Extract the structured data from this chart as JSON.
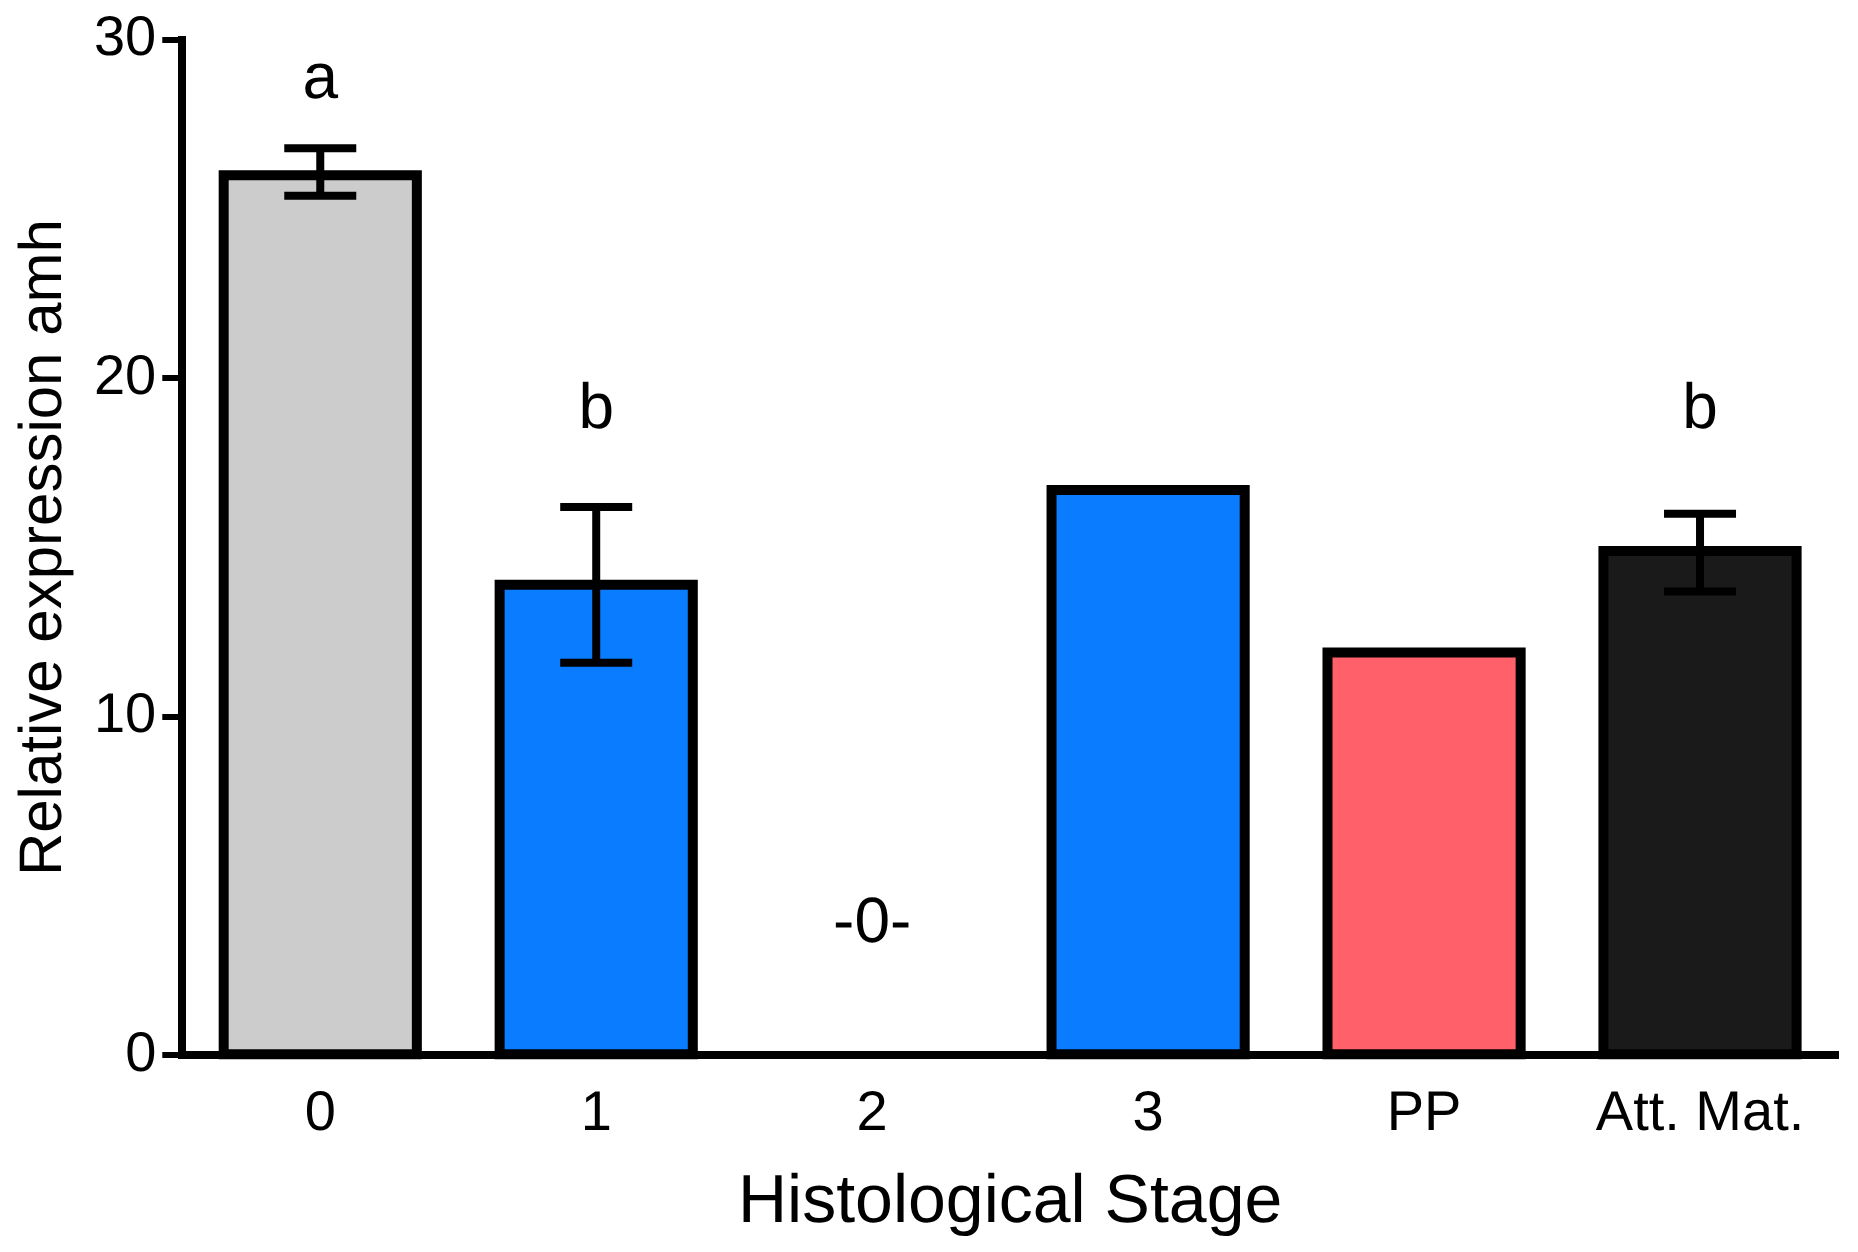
{
  "chart_data": {
    "type": "bar",
    "xlabel": "Histological Stage",
    "ylabel": "Relative expression amh",
    "categories": [
      "0",
      "1",
      "2",
      "3",
      "PP",
      "Att. Mat."
    ],
    "values": [
      26.0,
      13.9,
      0,
      16.7,
      11.9,
      14.9
    ],
    "colors": [
      "#cccccc",
      "#0a7cff",
      "#0a7cff",
      "#0a7cff",
      "#ff6069",
      "#1a1a1a"
    ],
    "errors": [
      [
        25.4,
        26.8
      ],
      [
        11.6,
        16.2
      ],
      null,
      null,
      null,
      [
        13.7,
        16.0
      ]
    ],
    "ylim": [
      0,
      30
    ],
    "yticks": [
      0,
      10,
      20,
      30
    ],
    "grid": false,
    "legend": false,
    "annotations": [
      "a",
      "b",
      "-0-",
      "b"
    ]
  }
}
